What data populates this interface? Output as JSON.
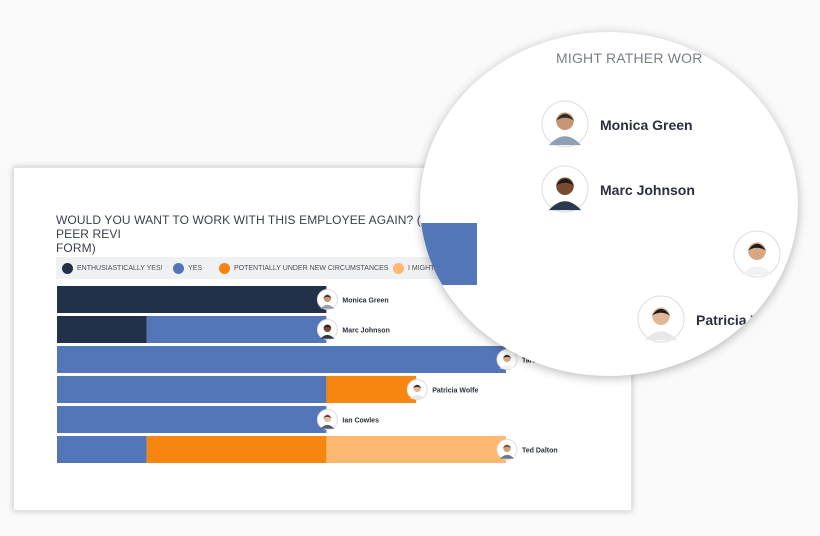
{
  "chart_data": {
    "type": "bar",
    "stacked": true,
    "orientation": "horizontal",
    "title": "WOULD YOU WANT TO WORK WITH THIS EMPLOYEE AGAIN? (360-PEER REVI FORM)",
    "title_line1": "WOULD YOU WANT TO WORK WITH THIS EMPLOYEE AGAIN? (360-PEER REVI",
    "title_line2": "FORM)",
    "legend_position": "top",
    "grid": false,
    "series": [
      {
        "name": "ENTHUSIASTICALLY YES!",
        "color": "#22304a",
        "values": [
          3,
          1,
          0,
          0,
          0,
          0
        ]
      },
      {
        "name": "YES",
        "color": "#5276b8",
        "values": [
          0,
          2,
          5,
          3,
          3,
          1
        ]
      },
      {
        "name": "POTENTIALLY UNDER NEW CIRCUMSTANCES",
        "color": "#f6860f",
        "values": [
          0,
          0,
          0,
          1,
          0,
          2
        ]
      },
      {
        "name": "I MIGHT RATHER WO",
        "color": "#fdb871",
        "values": [
          0,
          0,
          0,
          0,
          0,
          2
        ]
      }
    ],
    "categories": [
      "Monica Green",
      "Marc Johnson",
      "Tara Shah",
      "Patricia Wolfe",
      "Ian Cowles",
      "Ted Dalton"
    ],
    "xlim": [
      0,
      5
    ]
  },
  "zoom": {
    "header": "MIGHT RATHER WOR",
    "names": [
      "Monica Green",
      "Marc Johnson",
      "",
      "Patricia Wolfe"
    ]
  },
  "icons": {
    "avatar": "person-avatar-icon"
  }
}
